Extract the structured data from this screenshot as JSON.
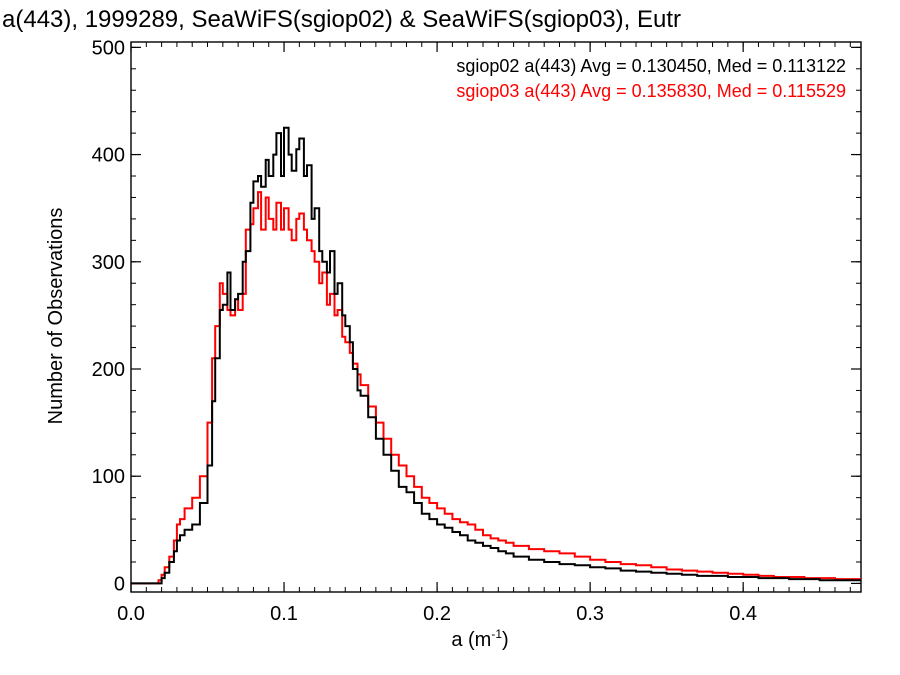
{
  "chart_data": {
    "type": "line",
    "title": "a(443), 1999289, SeaWiFS(sgiop02) & SeaWiFS(sgiop03), Eutr",
    "xlabel": "a (m",
    "xlabel_sup": "-1",
    "xlabel_close": ")",
    "ylabel": "Number of Observations",
    "xlim": [
      0.0,
      0.477
    ],
    "ylim": [
      -8,
      505
    ],
    "x_ticks": [
      0.0,
      0.1,
      0.2,
      0.3,
      0.4
    ],
    "x_tick_labels": [
      "0.0",
      "0.1",
      "0.2",
      "0.3",
      "0.4"
    ],
    "y_ticks": [
      0,
      100,
      200,
      300,
      400,
      500
    ],
    "y_tick_labels": [
      "0",
      "100",
      "200",
      "300",
      "400",
      "500"
    ],
    "grid": false,
    "step_style": "histogram-steps",
    "series": [
      {
        "name": "sgiop02",
        "color": "#000000",
        "annotation": "sgiop02 a(443) Avg = 0.130450, Med = 0.113122",
        "x": [
          0.0,
          0.01,
          0.015,
          0.018,
          0.02,
          0.022,
          0.025,
          0.028,
          0.03,
          0.032,
          0.035,
          0.04,
          0.045,
          0.05,
          0.053,
          0.055,
          0.058,
          0.06,
          0.063,
          0.065,
          0.068,
          0.07,
          0.073,
          0.075,
          0.078,
          0.08,
          0.083,
          0.085,
          0.088,
          0.09,
          0.093,
          0.095,
          0.098,
          0.1,
          0.103,
          0.105,
          0.108,
          0.11,
          0.113,
          0.115,
          0.118,
          0.12,
          0.123,
          0.125,
          0.128,
          0.13,
          0.133,
          0.135,
          0.138,
          0.14,
          0.143,
          0.145,
          0.148,
          0.15,
          0.155,
          0.16,
          0.165,
          0.17,
          0.175,
          0.18,
          0.185,
          0.19,
          0.195,
          0.2,
          0.205,
          0.21,
          0.215,
          0.22,
          0.225,
          0.23,
          0.235,
          0.24,
          0.245,
          0.25,
          0.26,
          0.27,
          0.28,
          0.29,
          0.3,
          0.31,
          0.32,
          0.33,
          0.34,
          0.35,
          0.36,
          0.37,
          0.38,
          0.39,
          0.4,
          0.41,
          0.42,
          0.43,
          0.44,
          0.45,
          0.46,
          0.47,
          0.477
        ],
        "y": [
          0,
          0,
          0,
          0,
          5,
          10,
          20,
          30,
          40,
          45,
          50,
          55,
          75,
          110,
          170,
          210,
          255,
          260,
          290,
          255,
          265,
          270,
          300,
          310,
          355,
          375,
          380,
          370,
          395,
          380,
          400,
          420,
          380,
          425,
          400,
          385,
          405,
          415,
          380,
          390,
          340,
          350,
          310,
          300,
          290,
          310,
          270,
          280,
          250,
          240,
          225,
          200,
          180,
          175,
          155,
          135,
          120,
          105,
          90,
          85,
          75,
          65,
          60,
          55,
          52,
          48,
          45,
          40,
          38,
          35,
          33,
          30,
          28,
          25,
          22,
          20,
          18,
          17,
          15,
          14,
          12,
          11,
          10,
          9,
          8,
          7,
          7,
          6,
          6,
          5,
          5,
          4,
          4,
          3,
          3,
          3,
          3
        ]
      },
      {
        "name": "sgiop03",
        "color": "#ff0000",
        "annotation": "sgiop03 a(443) Avg = 0.135830, Med = 0.115529",
        "x": [
          0.0,
          0.01,
          0.015,
          0.018,
          0.02,
          0.022,
          0.025,
          0.028,
          0.03,
          0.032,
          0.035,
          0.04,
          0.045,
          0.05,
          0.053,
          0.055,
          0.058,
          0.06,
          0.063,
          0.065,
          0.068,
          0.07,
          0.073,
          0.075,
          0.078,
          0.08,
          0.083,
          0.085,
          0.088,
          0.09,
          0.093,
          0.095,
          0.098,
          0.1,
          0.103,
          0.105,
          0.108,
          0.11,
          0.113,
          0.115,
          0.118,
          0.12,
          0.123,
          0.125,
          0.128,
          0.13,
          0.133,
          0.135,
          0.138,
          0.14,
          0.143,
          0.145,
          0.148,
          0.15,
          0.155,
          0.16,
          0.165,
          0.17,
          0.175,
          0.18,
          0.185,
          0.19,
          0.195,
          0.2,
          0.205,
          0.21,
          0.215,
          0.22,
          0.225,
          0.23,
          0.235,
          0.24,
          0.245,
          0.25,
          0.26,
          0.27,
          0.28,
          0.29,
          0.3,
          0.31,
          0.32,
          0.33,
          0.34,
          0.35,
          0.36,
          0.37,
          0.38,
          0.39,
          0.4,
          0.41,
          0.42,
          0.43,
          0.44,
          0.45,
          0.46,
          0.47,
          0.477
        ],
        "y": [
          0,
          0,
          0,
          3,
          8,
          15,
          25,
          40,
          55,
          60,
          70,
          80,
          100,
          150,
          210,
          240,
          280,
          270,
          255,
          250,
          265,
          255,
          270,
          330,
          335,
          350,
          365,
          330,
          360,
          340,
          330,
          355,
          330,
          350,
          330,
          320,
          340,
          345,
          330,
          320,
          310,
          300,
          280,
          290,
          260,
          270,
          250,
          255,
          230,
          225,
          215,
          205,
          195,
          185,
          165,
          150,
          135,
          120,
          110,
          100,
          90,
          80,
          75,
          70,
          65,
          60,
          57,
          55,
          50,
          45,
          42,
          40,
          38,
          35,
          32,
          30,
          28,
          25,
          22,
          20,
          18,
          17,
          15,
          13,
          12,
          11,
          10,
          9,
          8,
          7,
          6,
          6,
          5,
          5,
          4,
          4,
          4
        ]
      }
    ]
  }
}
